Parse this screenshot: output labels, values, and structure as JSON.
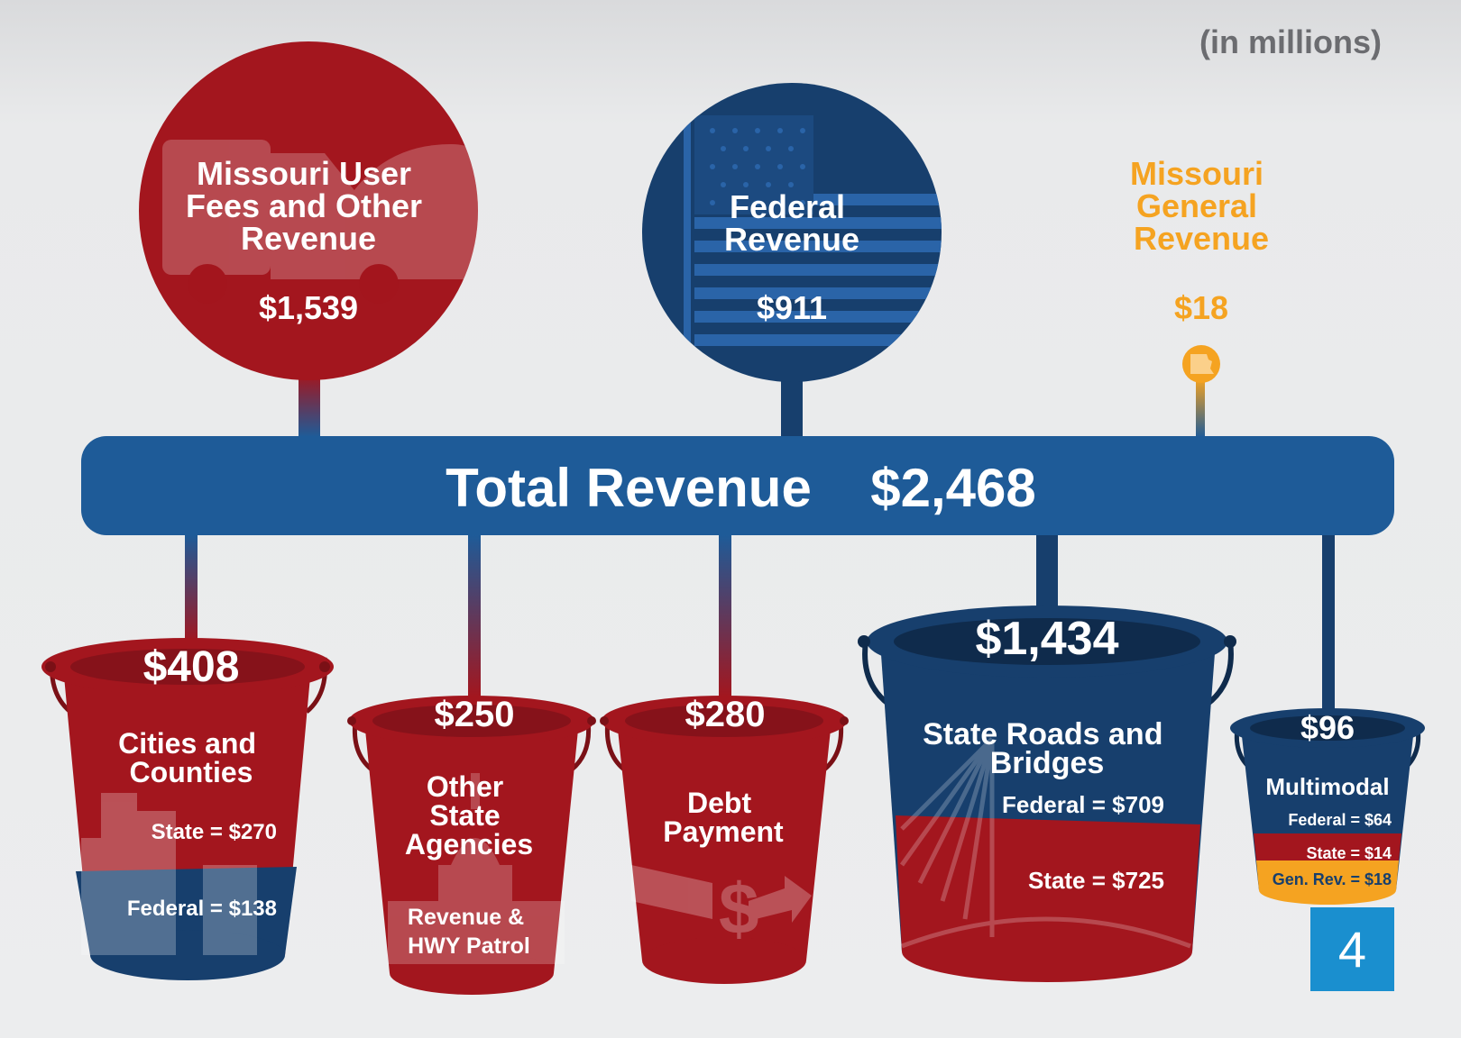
{
  "units_note": "(in millions)",
  "page_number": "4",
  "colors": {
    "red": "#a3161e",
    "navy": "#173f6d",
    "bar_blue": "#1e5b98",
    "orange": "#f5a321",
    "page_badge": "#1a8fcf"
  },
  "sources": [
    {
      "id": "user-fees",
      "label_lines": [
        "Missouri User",
        "Fees and Other",
        "Revenue"
      ],
      "amount": "$1,539",
      "color": "#a3161e",
      "icon": "truck-car-icon"
    },
    {
      "id": "federal",
      "label_lines": [
        "Federal",
        "Revenue"
      ],
      "amount": "$911",
      "color": "#173f6d",
      "icon": "flag-icon"
    },
    {
      "id": "general",
      "label_lines": [
        "Missouri",
        "General",
        "Revenue"
      ],
      "amount": "$18",
      "color": "#f5a321",
      "icon": "missouri-state-icon"
    }
  ],
  "total": {
    "label": "Total Revenue",
    "amount": "$2,468"
  },
  "buckets": [
    {
      "id": "cities",
      "amount": "$408",
      "label_lines": [
        "Cities and",
        "Counties"
      ],
      "breakdown": [
        "State = $270",
        "Federal = $138"
      ],
      "icon": "city-skyline-icon"
    },
    {
      "id": "agencies",
      "amount": "$250",
      "label_lines": [
        "Other",
        "State",
        "Agencies"
      ],
      "sub_lines": [
        "Revenue &",
        "HWY Patrol"
      ],
      "icon": "capitol-icon"
    },
    {
      "id": "debt",
      "amount": "$280",
      "label_lines": [
        "Debt",
        "Payment"
      ],
      "icon": "dollar-arrow-icon"
    },
    {
      "id": "roads",
      "amount": "$1,434",
      "label_lines": [
        "State Roads and",
        "Bridges"
      ],
      "breakdown": [
        "Federal = $709",
        "State = $725"
      ],
      "icon": "bridge-icon"
    },
    {
      "id": "multimodal",
      "amount": "$96",
      "label_lines": [
        "Multimodal"
      ],
      "breakdown": [
        "Federal = $64",
        "State = $14",
        "Gen. Rev. = $18"
      ],
      "icon": "none"
    }
  ]
}
